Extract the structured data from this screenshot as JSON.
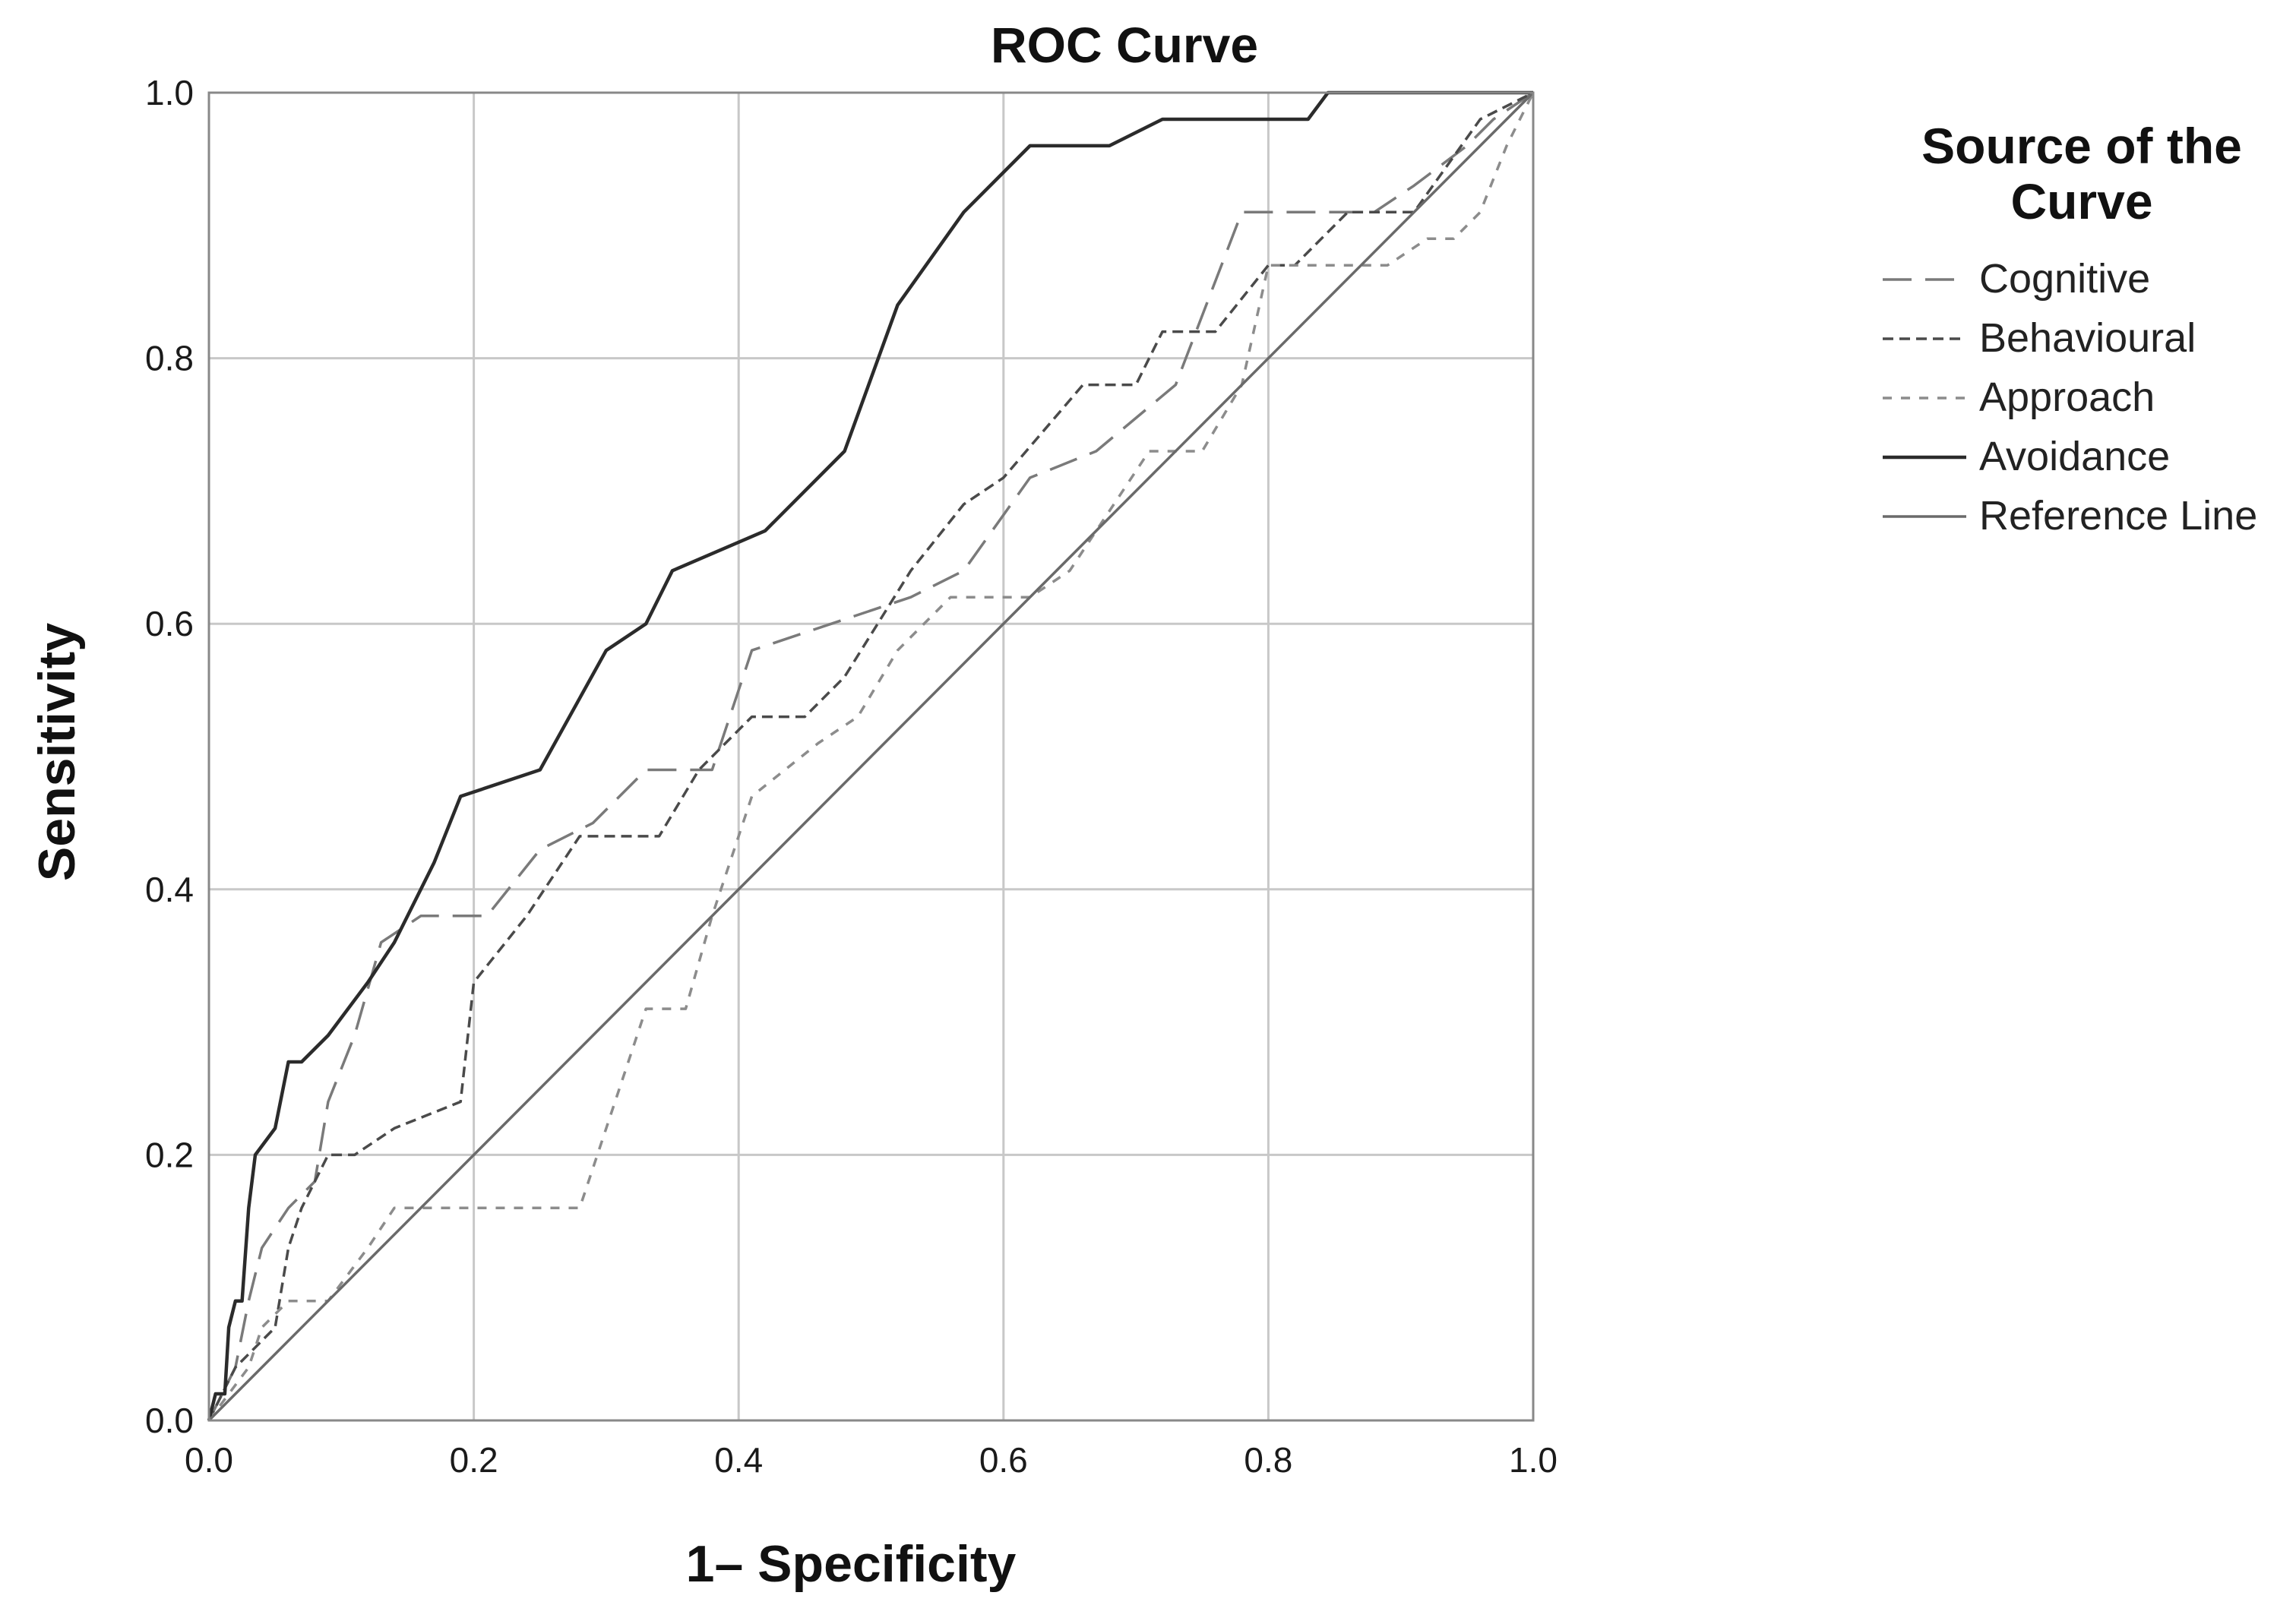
{
  "chart_data": {
    "type": "line",
    "title": "ROC Curve",
    "xlabel": "1– Specificity",
    "ylabel": "Sensitivity",
    "xlim": [
      0,
      1
    ],
    "ylim": [
      0,
      1
    ],
    "grid": true,
    "xticks": [
      "0.0",
      "0.2",
      "0.4",
      "0.6",
      "0.8",
      "1.0"
    ],
    "yticks": [
      "0.0",
      "0.2",
      "0.4",
      "0.6",
      "0.8",
      "1.0"
    ],
    "legend": {
      "title_line1": "Source of the",
      "title_line2": "Curve",
      "placement": "right"
    },
    "series": [
      {
        "name": "Cognitive",
        "color": "#7a7a7a",
        "dash": "long-dash",
        "points": [
          [
            0,
            0
          ],
          [
            0.01,
            0.02
          ],
          [
            0.02,
            0.04
          ],
          [
            0.03,
            0.09
          ],
          [
            0.04,
            0.13
          ],
          [
            0.06,
            0.16
          ],
          [
            0.08,
            0.18
          ],
          [
            0.09,
            0.24
          ],
          [
            0.11,
            0.29
          ],
          [
            0.13,
            0.36
          ],
          [
            0.16,
            0.38
          ],
          [
            0.21,
            0.38
          ],
          [
            0.25,
            0.43
          ],
          [
            0.29,
            0.45
          ],
          [
            0.33,
            0.49
          ],
          [
            0.38,
            0.49
          ],
          [
            0.41,
            0.58
          ],
          [
            0.47,
            0.6
          ],
          [
            0.53,
            0.62
          ],
          [
            0.57,
            0.64
          ],
          [
            0.62,
            0.71
          ],
          [
            0.67,
            0.73
          ],
          [
            0.73,
            0.78
          ],
          [
            0.78,
            0.91
          ],
          [
            0.88,
            0.91
          ],
          [
            0.91,
            0.93
          ],
          [
            0.95,
            0.96
          ],
          [
            0.97,
            0.98
          ],
          [
            1.0,
            1.0
          ]
        ]
      },
      {
        "name": "Behavioural",
        "color": "#4a4a4a",
        "dash": "short-dash",
        "points": [
          [
            0,
            0
          ],
          [
            0.02,
            0.04
          ],
          [
            0.05,
            0.07
          ],
          [
            0.06,
            0.13
          ],
          [
            0.07,
            0.16
          ],
          [
            0.08,
            0.18
          ],
          [
            0.09,
            0.2
          ],
          [
            0.11,
            0.2
          ],
          [
            0.14,
            0.22
          ],
          [
            0.19,
            0.24
          ],
          [
            0.2,
            0.33
          ],
          [
            0.24,
            0.38
          ],
          [
            0.28,
            0.44
          ],
          [
            0.34,
            0.44
          ],
          [
            0.37,
            0.49
          ],
          [
            0.41,
            0.53
          ],
          [
            0.45,
            0.53
          ],
          [
            0.48,
            0.56
          ],
          [
            0.53,
            0.64
          ],
          [
            0.57,
            0.69
          ],
          [
            0.6,
            0.71
          ],
          [
            0.66,
            0.78
          ],
          [
            0.7,
            0.78
          ],
          [
            0.72,
            0.82
          ],
          [
            0.76,
            0.82
          ],
          [
            0.8,
            0.87
          ],
          [
            0.82,
            0.87
          ],
          [
            0.86,
            0.91
          ],
          [
            0.91,
            0.91
          ],
          [
            0.96,
            0.98
          ],
          [
            1.0,
            1.0
          ]
        ]
      },
      {
        "name": "Approach",
        "color": "#8c8c8c",
        "dash": "dot-dash",
        "points": [
          [
            0,
            0
          ],
          [
            0.03,
            0.04
          ],
          [
            0.04,
            0.07
          ],
          [
            0.06,
            0.09
          ],
          [
            0.09,
            0.09
          ],
          [
            0.12,
            0.13
          ],
          [
            0.14,
            0.16
          ],
          [
            0.17,
            0.16
          ],
          [
            0.28,
            0.16
          ],
          [
            0.3,
            0.22
          ],
          [
            0.33,
            0.31
          ],
          [
            0.36,
            0.31
          ],
          [
            0.38,
            0.38
          ],
          [
            0.41,
            0.47
          ],
          [
            0.46,
            0.51
          ],
          [
            0.49,
            0.53
          ],
          [
            0.52,
            0.58
          ],
          [
            0.56,
            0.62
          ],
          [
            0.62,
            0.62
          ],
          [
            0.65,
            0.64
          ],
          [
            0.71,
            0.73
          ],
          [
            0.75,
            0.73
          ],
          [
            0.78,
            0.78
          ],
          [
            0.8,
            0.87
          ],
          [
            0.89,
            0.87
          ],
          [
            0.92,
            0.89
          ],
          [
            0.94,
            0.89
          ],
          [
            0.96,
            0.91
          ],
          [
            0.98,
            0.96
          ],
          [
            1.0,
            1.0
          ]
        ]
      },
      {
        "name": "Avoidance",
        "color": "#2b2b2b",
        "dash": "solid",
        "points": [
          [
            0,
            0
          ],
          [
            0.005,
            0.02
          ],
          [
            0.012,
            0.02
          ],
          [
            0.015,
            0.07
          ],
          [
            0.02,
            0.09
          ],
          [
            0.025,
            0.09
          ],
          [
            0.03,
            0.16
          ],
          [
            0.035,
            0.2
          ],
          [
            0.05,
            0.22
          ],
          [
            0.06,
            0.27
          ],
          [
            0.07,
            0.27
          ],
          [
            0.09,
            0.29
          ],
          [
            0.12,
            0.33
          ],
          [
            0.14,
            0.36
          ],
          [
            0.17,
            0.42
          ],
          [
            0.19,
            0.47
          ],
          [
            0.25,
            0.49
          ],
          [
            0.3,
            0.58
          ],
          [
            0.33,
            0.6
          ],
          [
            0.35,
            0.64
          ],
          [
            0.42,
            0.67
          ],
          [
            0.48,
            0.73
          ],
          [
            0.52,
            0.84
          ],
          [
            0.57,
            0.91
          ],
          [
            0.62,
            0.96
          ],
          [
            0.68,
            0.96
          ],
          [
            0.72,
            0.98
          ],
          [
            0.83,
            0.98
          ],
          [
            0.845,
            1.0
          ],
          [
            1.0,
            1.0
          ]
        ]
      },
      {
        "name": "Reference Line",
        "color": "#6a6a6a",
        "dash": "solid",
        "points": [
          [
            0,
            0
          ],
          [
            1,
            1
          ]
        ]
      }
    ]
  }
}
